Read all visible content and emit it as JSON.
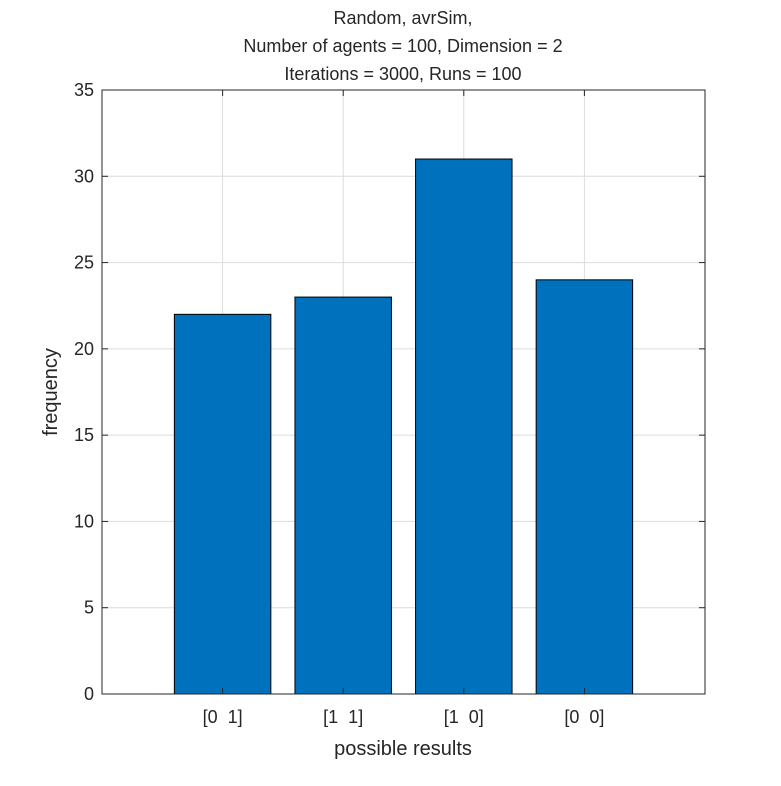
{
  "chart_data": {
    "type": "bar",
    "title": [
      "Random, avrSim,",
      "Number of agents = 100, Dimension = 2",
      "Iterations = 3000, Runs = 100"
    ],
    "xlabel": "possible results",
    "ylabel": "frequency",
    "categories": [
      "[0  1]",
      "[1  1]",
      "[1  0]",
      "[0  0]"
    ],
    "values": [
      22,
      23,
      31,
      24
    ],
    "ylim": [
      0,
      35
    ],
    "yticks": [
      0,
      5,
      10,
      15,
      20,
      25,
      30,
      35
    ],
    "xlim": [
      0,
      5
    ],
    "grid": true,
    "bar_color": "#0072BD",
    "bar_edge_color": "#000000",
    "axis_color": "#262626",
    "grid_color": "#dcdcdc"
  }
}
